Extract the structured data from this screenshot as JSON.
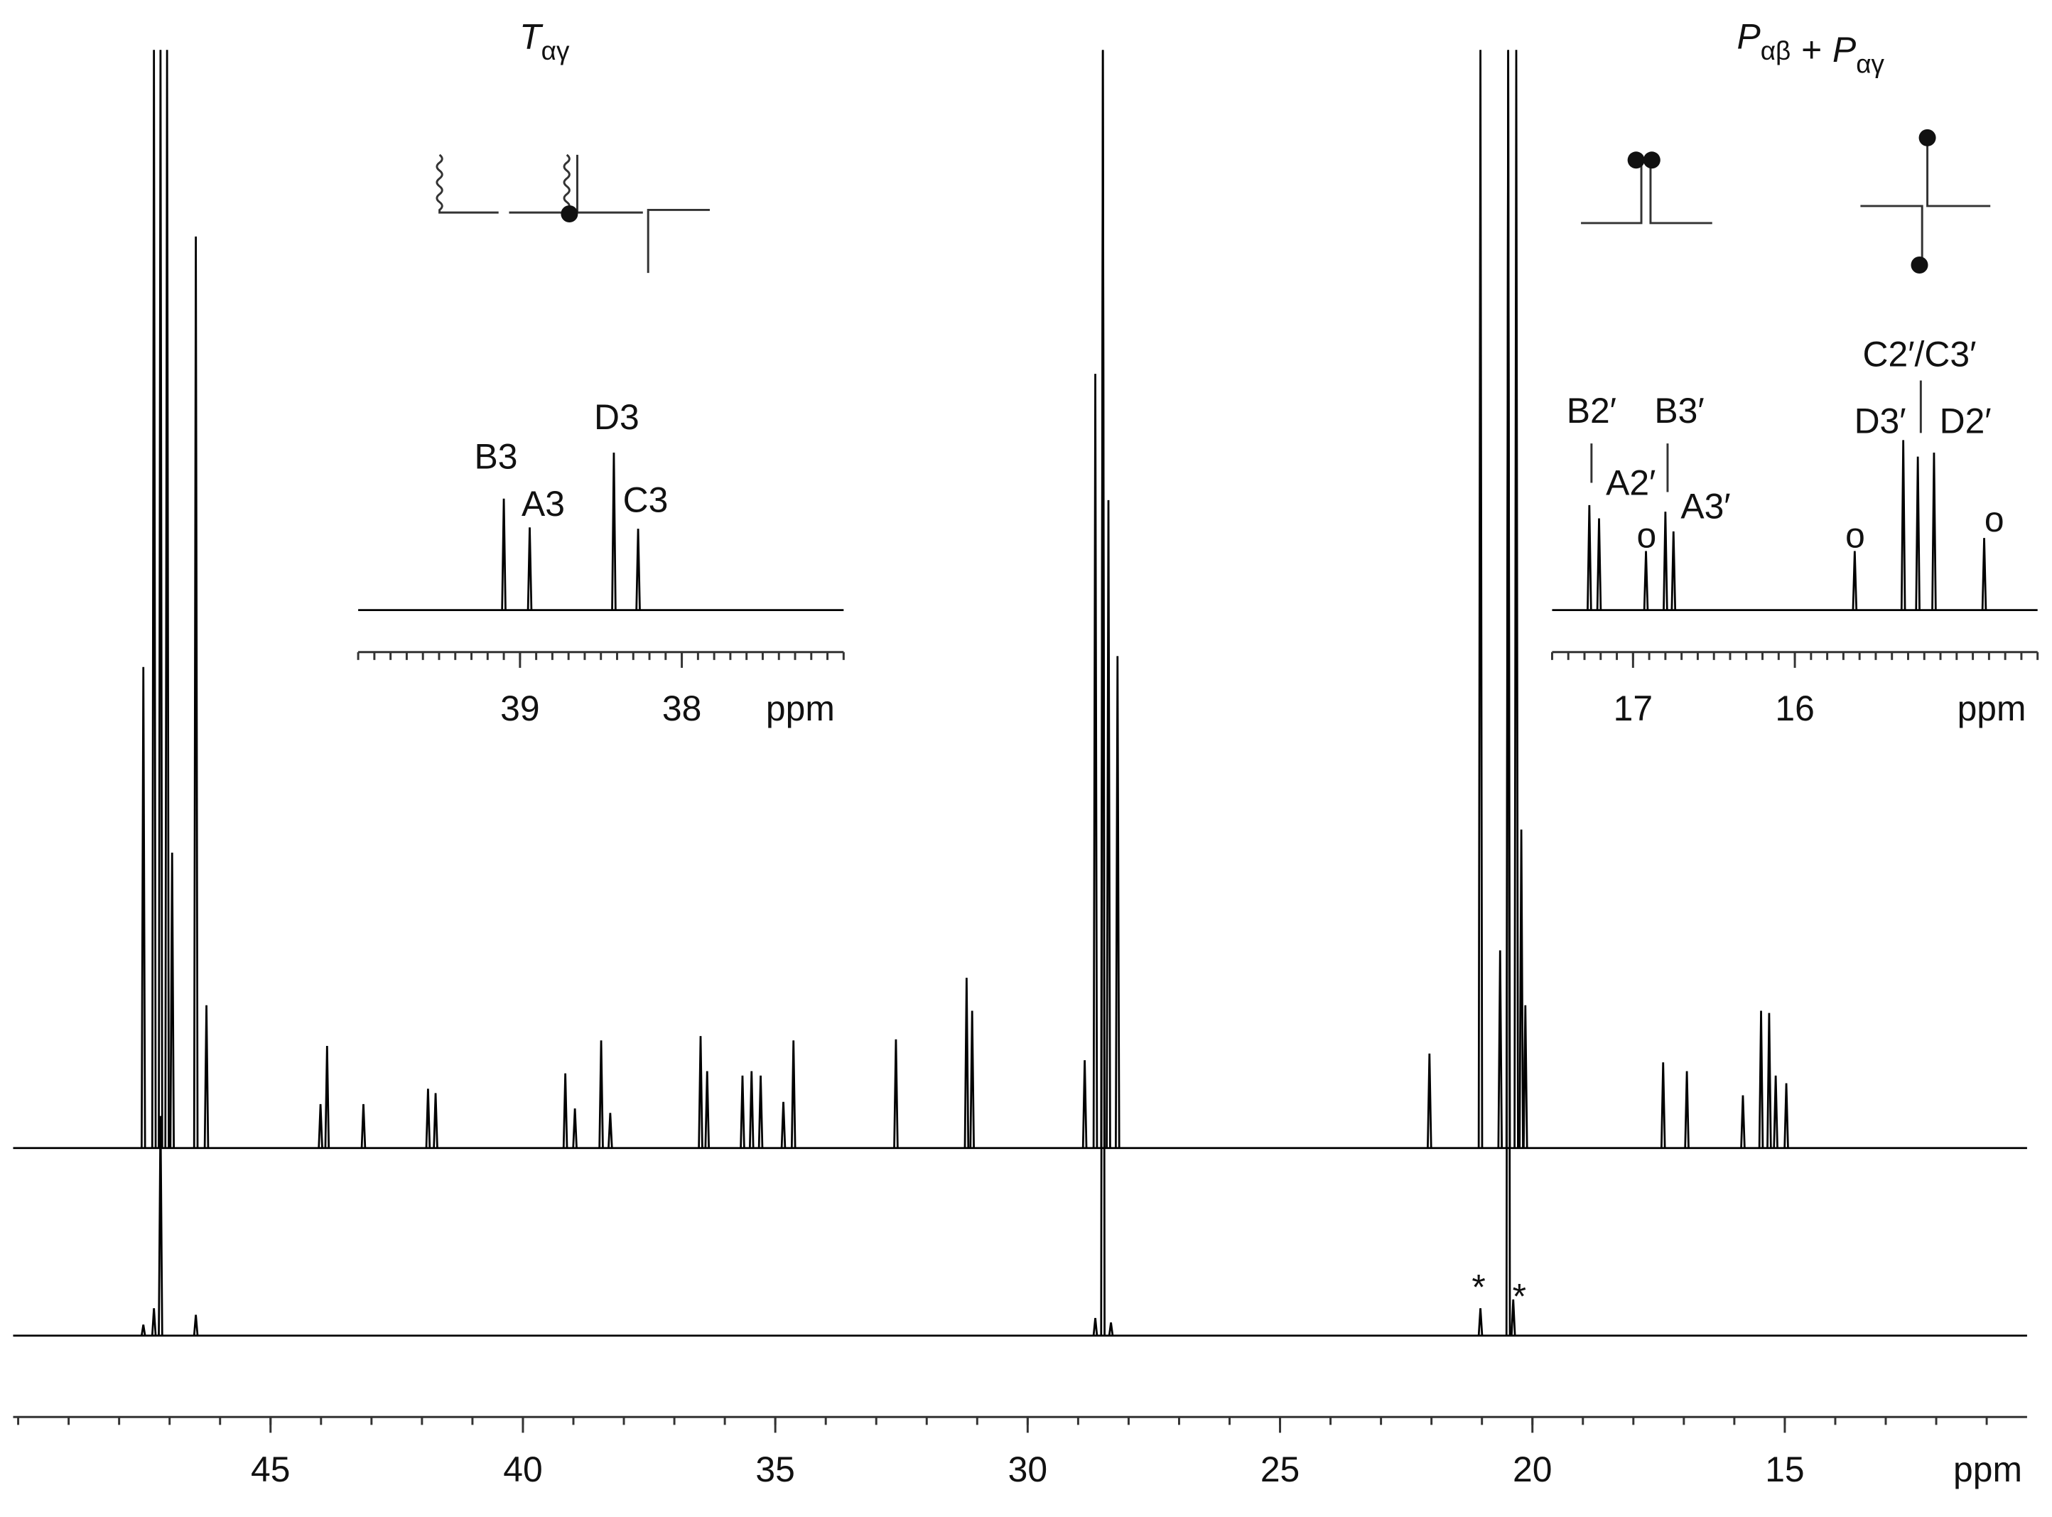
{
  "chart_data": [
    {
      "type": "spectrum",
      "xlabel": "ppm",
      "xlim": [
        50.1,
        10.2
      ],
      "xticks": [
        45,
        40,
        35,
        30,
        25,
        20,
        15
      ],
      "xminor_step": 1,
      "ylim": [
        0,
        100
      ],
      "series": [
        {
          "color": "#000000",
          "x": [
            47.52,
            47.31,
            47.18,
            47.05,
            46.95,
            46.48,
            46.27,
            44.01,
            43.88,
            43.16,
            41.88,
            41.73,
            39.16,
            38.97,
            38.45,
            38.27,
            36.48,
            36.35,
            35.65,
            35.47,
            35.29,
            34.84,
            34.64,
            32.61,
            31.21,
            31.1,
            28.87,
            28.66,
            28.51,
            28.4,
            28.22,
            22.04,
            21.03,
            20.64,
            20.48,
            20.32,
            20.22,
            20.14,
            17.41,
            16.94,
            15.83,
            15.47,
            15.31,
            15.18,
            14.97
          ],
          "values": [
            43.8,
            100,
            100,
            100,
            26.9,
            83,
            13,
            4,
            9.3,
            4,
            5.4,
            5,
            6.8,
            3.6,
            9.8,
            3.2,
            10.2,
            7,
            6.6,
            7,
            6.6,
            4.2,
            9.8,
            9.9,
            15.5,
            12.5,
            8,
            70.5,
            100,
            59,
            44.8,
            8.6,
            100,
            18,
            100,
            100,
            29,
            13,
            7.8,
            7,
            4.8,
            12.5,
            12.3,
            6.6,
            5.9
          ]
        },
        {
          "color": "#000000",
          "x": [
            47.52,
            47.31,
            47.18,
            46.48,
            28.66,
            28.51,
            28.35,
            21.03,
            20.48,
            20.38
          ],
          "values": [
            1,
            2.5,
            20,
            1.9,
            1.6,
            117,
            1.2,
            2.5,
            117,
            3.3
          ]
        }
      ],
      "annotations": [
        "*",
        "*"
      ]
    },
    {
      "type": "spectrum",
      "title_parts": [
        {
          "text": "T",
          "sub": "αγ"
        }
      ],
      "xlabel": "ppm",
      "xlim": [
        40.0,
        37.0
      ],
      "xticks": [
        39,
        38
      ],
      "xminor_step": 0.1,
      "ylim": [
        0,
        100
      ],
      "series": [
        {
          "color": "#000000",
          "x": [
            39.1,
            38.94,
            38.42,
            38.27
          ],
          "values": [
            70.8,
            52.5,
            100,
            51.7
          ]
        }
      ],
      "annotations": [
        "B3",
        "A3",
        "D3",
        "C3"
      ]
    },
    {
      "type": "spectrum",
      "title_parts": [
        {
          "text": "P",
          "sub": "αβ"
        },
        {
          "text": "+"
        },
        {
          "text": "P",
          "sub": "αγ"
        }
      ],
      "xlabel": "ppm",
      "xlim": [
        17.5,
        14.5
      ],
      "xticks": [
        17,
        16
      ],
      "xminor_step": 0.1,
      "ylim": [
        0,
        100
      ],
      "series": [
        {
          "color": "#000000",
          "x": [
            17.27,
            17.21,
            16.92,
            16.8,
            16.75,
            15.63,
            15.33,
            15.24,
            15.14,
            14.83
          ],
          "values": [
            66.7,
            58.3,
            37.5,
            62.5,
            50,
            37.5,
            108,
            97.5,
            100,
            45.8
          ]
        }
      ],
      "annotations": [
        "B2′",
        "A2′",
        "o",
        "B3′",
        "A3′",
        "o",
        "C2′/C3′",
        "D3′",
        "D2′",
        "o"
      ]
    }
  ]
}
